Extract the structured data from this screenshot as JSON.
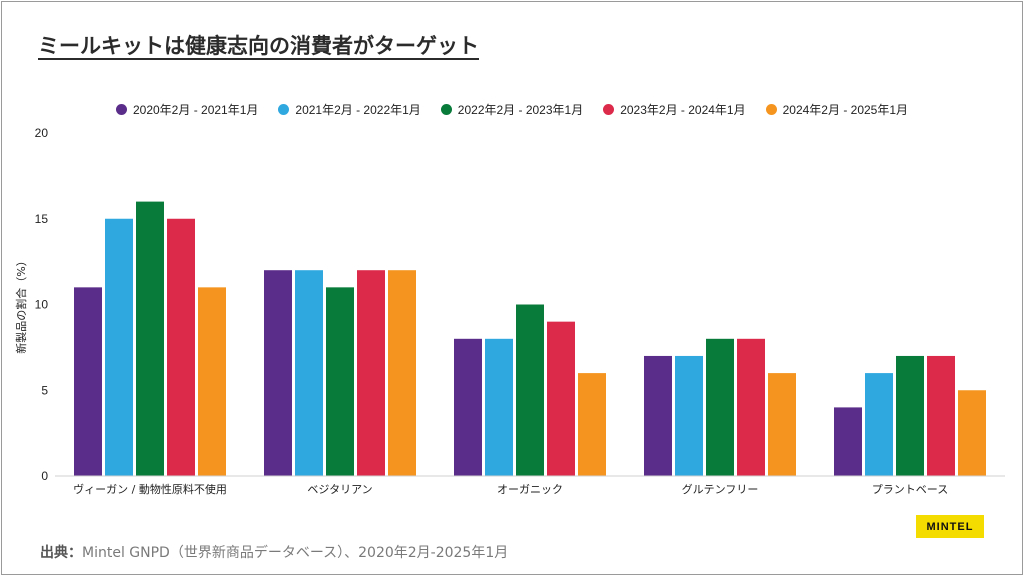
{
  "page": {
    "title": "ミールキットは健康志向の消費者がターゲット",
    "source_label": "出典：",
    "source_text": "Mintel GNPD（世界新商品データベース）、2020年2月-2025年1月",
    "logo": "MINTEL"
  },
  "chart_data": {
    "type": "bar",
    "title": "ミールキットは健康志向の消費者がターゲット",
    "xlabel": "",
    "ylabel": "新製品の割合（%）",
    "ylim": [
      0,
      20
    ],
    "yticks": [
      0,
      5,
      10,
      15,
      20
    ],
    "grid": false,
    "legend_position": "top-center",
    "categories": [
      "ヴィーガン / 動物性原料不使用",
      "ベジタリアン",
      "オーガニック",
      "グルテンフリー",
      "プラントベース"
    ],
    "series": [
      {
        "name": "2020年2月 - 2021年1月",
        "color": "#5b2d8a",
        "values": [
          11,
          12,
          8,
          7,
          4
        ]
      },
      {
        "name": "2021年2月 - 2022年1月",
        "color": "#2fa8e0",
        "values": [
          15,
          12,
          8,
          7,
          6
        ]
      },
      {
        "name": "2022年2月 - 2023年1月",
        "color": "#087a3a",
        "values": [
          16,
          11,
          10,
          8,
          7
        ]
      },
      {
        "name": "2023年2月 - 2024年1月",
        "color": "#dc2a4b",
        "values": [
          15,
          12,
          9,
          8,
          7
        ]
      },
      {
        "name": "2024年2月 - 2025年1月",
        "color": "#f5951f",
        "values": [
          11,
          12,
          6,
          6,
          5
        ]
      }
    ]
  }
}
